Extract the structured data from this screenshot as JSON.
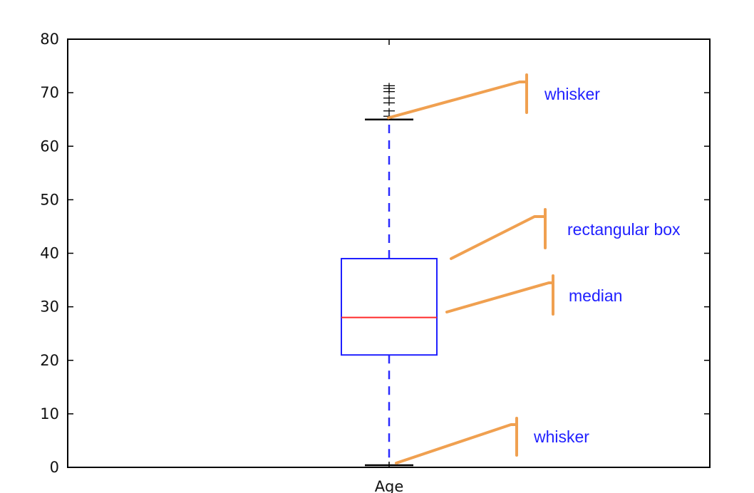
{
  "chart_data": {
    "type": "box",
    "title": "",
    "xlabel": "",
    "ylabel": "",
    "categories": [
      "Age"
    ],
    "ylim": [
      0,
      80
    ],
    "yticks": [
      0,
      10,
      20,
      30,
      40,
      50,
      60,
      70,
      80
    ],
    "grid": false,
    "box": {
      "whisker_low": 0.4,
      "q1": 21,
      "median": 28,
      "q3": 39,
      "whisker_high": 65,
      "outliers": [
        65.6,
        66.6,
        68.1,
        69,
        70.2,
        70.8,
        71.3
      ]
    },
    "annotations": [
      {
        "text": "whisker",
        "target_y": 65.3
      },
      {
        "text": "rectangular box",
        "target_y": 39
      },
      {
        "text": "median",
        "target_y": 29
      },
      {
        "text": "whisker",
        "target_y": 0.5
      }
    ],
    "colors": {
      "box": "#1f1fff",
      "median": "#ff2a2a",
      "whisker": "#2a2aff",
      "cap": "#000000",
      "outlier": "#000000",
      "annotation_line": "#f0a050",
      "annotation_text": "#1f1fff"
    }
  }
}
